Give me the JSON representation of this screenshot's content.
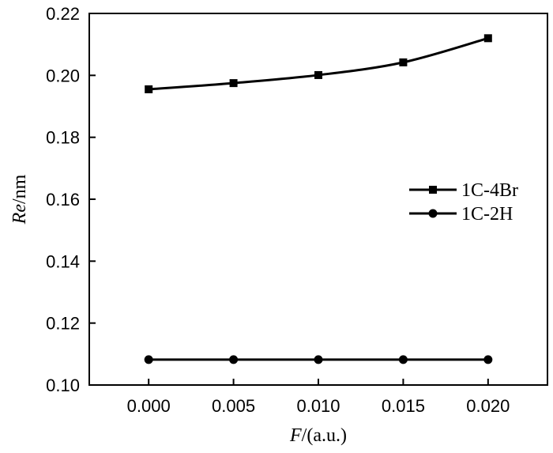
{
  "chart_data": {
    "type": "line",
    "x": [
      0.0,
      0.005,
      0.01,
      0.015,
      0.02
    ],
    "x_tick_labels": [
      "0.000",
      "0.005",
      "0.010",
      "0.015",
      "0.020"
    ],
    "y_ticks": [
      0.1,
      0.12,
      0.14,
      0.16,
      0.18,
      0.2,
      0.22
    ],
    "y_tick_labels": [
      "0.10",
      "0.12",
      "0.14",
      "0.16",
      "0.18",
      "0.20",
      "0.22"
    ],
    "xlim": [
      -0.0035,
      0.0235
    ],
    "ylim": [
      0.1,
      0.22
    ],
    "xlabel_italic": "F",
    "xlabel_rest": "/(a.u.)",
    "ylabel_italic": "Re",
    "ylabel_rest": "/nm",
    "grid": false,
    "legend_position": "right",
    "series": [
      {
        "name": "1C-4Br",
        "marker": "square",
        "color": "#000000",
        "values": [
          0.1955,
          0.1975,
          0.2001,
          0.2042,
          0.212
        ]
      },
      {
        "name": "1C-2H",
        "marker": "circle",
        "color": "#000000",
        "values": [
          0.1082,
          0.1082,
          0.1082,
          0.1082,
          0.1082
        ]
      }
    ]
  }
}
